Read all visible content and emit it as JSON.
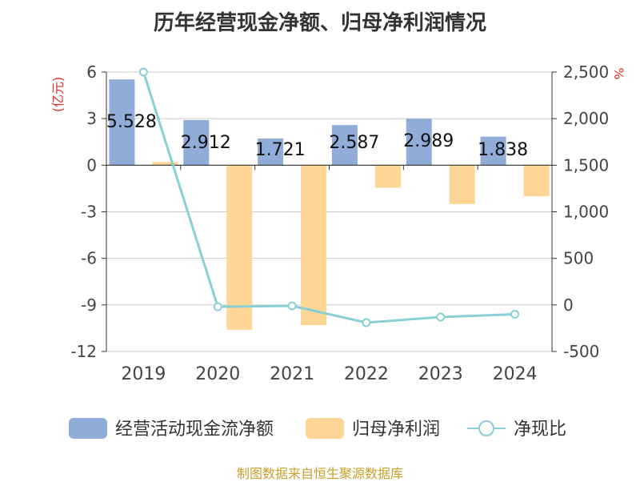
{
  "chart_data": {
    "type": "bar",
    "title": "历年经营现金净额、归母净利润情况",
    "categories": [
      "2019",
      "2020",
      "2021",
      "2022",
      "2023",
      "2024"
    ],
    "series": [
      {
        "name": "经营活动现金流净额",
        "type": "bar",
        "axis": "left",
        "color": "#8fadd8",
        "values": [
          5.528,
          2.912,
          1.721,
          2.587,
          2.989,
          1.838
        ],
        "labels": [
          "5.528",
          "2.912",
          "1.721",
          "2.587",
          "2.989",
          "1.838"
        ]
      },
      {
        "name": "归母净利润",
        "type": "bar",
        "axis": "left",
        "color": "#fdd594",
        "values": [
          0.2,
          -10.6,
          -10.3,
          -1.45,
          -2.5,
          -2.0
        ]
      },
      {
        "name": "净现比",
        "type": "line",
        "axis": "right",
        "color": "#88d0d3",
        "values": [
          2500,
          -20,
          -10,
          -190,
          -130,
          -100
        ]
      }
    ],
    "y_left": {
      "label": "(亿元)",
      "ylim": [
        -12,
        6
      ],
      "ticks": [
        6,
        3,
        0,
        -3,
        -6,
        -9,
        -12
      ],
      "tick_labels": [
        "6",
        "3",
        "0",
        "-3",
        "-6",
        "-9",
        "-12"
      ]
    },
    "y_right": {
      "label": "%",
      "ylim": [
        -500,
        2500
      ],
      "ticks": [
        2500,
        2000,
        1500,
        1000,
        500,
        0,
        -500
      ],
      "tick_labels": [
        "2,500",
        "2,000",
        "1,500",
        "1,000",
        "500",
        "0",
        "-500"
      ]
    },
    "grid": true,
    "legend_position": "bottom"
  },
  "source_text": "制图数据来自恒生聚源数据库",
  "colors": {
    "grid": "#cccccc",
    "axis": "#333333",
    "unit_label": "#e03030"
  }
}
